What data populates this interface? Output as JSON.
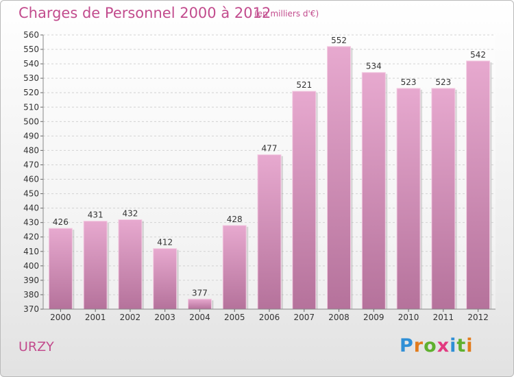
{
  "header": {
    "title": "Charges de Personnel 2000 à 2012",
    "subtitle": "(en milliers d'€)"
  },
  "footer": {
    "commune": "URZY",
    "logo_letters": [
      "P",
      "r",
      "o",
      "x",
      "i",
      "t",
      "i"
    ],
    "logo_colors": [
      "#2f8fd6",
      "#e27b1c",
      "#5fb02f",
      "#e23a80",
      "#2f8fd6",
      "#5fb02f",
      "#e27b1c"
    ]
  },
  "chart_data": {
    "type": "bar",
    "categories": [
      "2000",
      "2001",
      "2002",
      "2003",
      "2004",
      "2005",
      "2006",
      "2007",
      "2008",
      "2009",
      "2010",
      "2011",
      "2012"
    ],
    "values": [
      426,
      431,
      432,
      412,
      377,
      428,
      477,
      521,
      552,
      534,
      523,
      523,
      542
    ],
    "title": "Charges de Personnel 2000 à 2012",
    "ylim": [
      370,
      560
    ],
    "yticks": [
      370,
      380,
      390,
      400,
      410,
      420,
      430,
      440,
      450,
      460,
      470,
      480,
      490,
      500,
      510,
      520,
      530,
      540,
      550,
      560
    ],
    "grid": true,
    "bar_color": "#d98ab8"
  }
}
